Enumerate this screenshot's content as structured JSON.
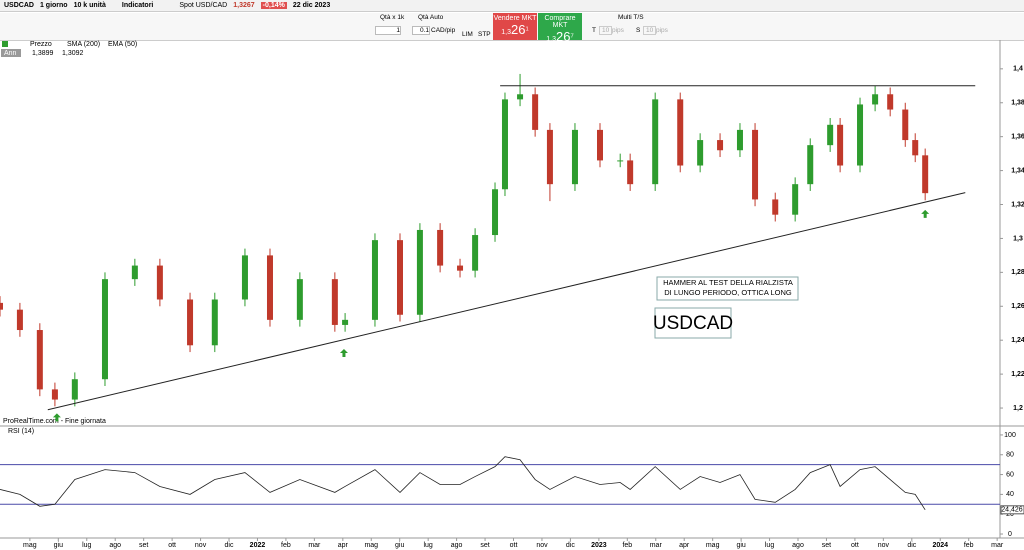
{
  "toolbar": {
    "symbol": "USDCAD",
    "timeframe": "1 giorno",
    "size": "10 k unità",
    "indicators": "Indicatori",
    "quote_name": "Spot USD/CAD",
    "quote_price": "1,3267",
    "quote_change": "-0,14%",
    "quote_date": "22 dic 2023"
  },
  "order_panel": {
    "qty_label": "Qtà x 1k",
    "qty_auto": "Qtà Auto",
    "qty": "1",
    "pip_value": "0.1",
    "pip_unit": "CAD/pip",
    "lim": "LIM",
    "stp": "STP",
    "sell_label": "Vendere MKT",
    "sell_small": "1,3",
    "sell_big": "26",
    "sell_sup": "1",
    "buy_label": "Comprare MKT",
    "buy_small": "1,3",
    "buy_big": "26",
    "buy_sup": "7",
    "multi": "Multi T/S",
    "t": "T",
    "t_pips": "10",
    "s": "S",
    "s_pips": "10",
    "pips": "pips"
  },
  "legend": {
    "price": "Prezzo",
    "sma": "SMA (200)",
    "ema": "EMA (50)",
    "ann": "Ann",
    "high": "1,3899",
    "low": "1,3092"
  },
  "chart_data": [
    {
      "type": "candlestick",
      "source": "ProRealTime.com - Fine giornata",
      "annotation": "HAMMER AL TEST DELLA RIALZISTA DI LUNGO PERIODO, OTTICA LONG",
      "label": "USDCAD",
      "up_color": "#2e9c2e",
      "down_color": "#c0392b",
      "x": [
        -1.05,
        -0.35,
        0.35,
        0.88,
        1.58,
        2.64,
        3.69,
        4.57,
        5.63,
        6.5,
        7.56,
        8.44,
        9.49,
        10.72,
        11.08,
        12.13,
        13.01,
        13.71,
        14.42,
        15.12,
        15.65,
        16.35,
        16.7,
        17.23,
        17.76,
        18.28,
        19.16,
        20.04,
        20.75,
        21.1,
        21.98,
        22.86,
        23.56,
        24.26,
        24.96,
        25.49,
        26.2,
        26.9,
        27.43,
        28.13,
        28.48,
        29.18,
        29.71,
        30.24,
        30.77,
        31.12,
        31.47
      ],
      "open": [
        1.262,
        1.258,
        1.246,
        1.211,
        1.205,
        1.217,
        1.276,
        1.284,
        1.264,
        1.237,
        1.264,
        1.29,
        1.252,
        1.276,
        1.249,
        1.252,
        1.299,
        1.255,
        1.305,
        1.284,
        1.281,
        1.302,
        1.329,
        1.382,
        1.385,
        1.364,
        1.332,
        1.364,
        1.346,
        1.346,
        1.332,
        1.382,
        1.343,
        1.358,
        1.352,
        1.364,
        1.323,
        1.314,
        1.332,
        1.355,
        1.367,
        1.343,
        1.379,
        1.385,
        1.376,
        1.358,
        1.349
      ],
      "high": [
        1.266,
        1.262,
        1.25,
        1.215,
        1.221,
        1.28,
        1.288,
        1.288,
        1.268,
        1.268,
        1.294,
        1.294,
        1.28,
        1.28,
        1.256,
        1.303,
        1.303,
        1.309,
        1.309,
        1.288,
        1.306,
        1.333,
        1.386,
        1.397,
        1.389,
        1.368,
        1.368,
        1.368,
        1.35,
        1.35,
        1.386,
        1.386,
        1.362,
        1.362,
        1.368,
        1.368,
        1.327,
        1.336,
        1.359,
        1.371,
        1.371,
        1.383,
        1.39,
        1.389,
        1.38,
        1.362,
        1.353
      ],
      "low": [
        1.254,
        1.242,
        1.207,
        1.201,
        1.201,
        1.213,
        1.272,
        1.26,
        1.233,
        1.233,
        1.26,
        1.248,
        1.248,
        1.245,
        1.245,
        1.248,
        1.251,
        1.251,
        1.28,
        1.277,
        1.277,
        1.298,
        1.325,
        1.378,
        1.36,
        1.322,
        1.328,
        1.342,
        1.342,
        1.328,
        1.328,
        1.339,
        1.339,
        1.348,
        1.348,
        1.319,
        1.31,
        1.31,
        1.328,
        1.351,
        1.339,
        1.339,
        1.375,
        1.372,
        1.354,
        1.345,
        1.3225
      ],
      "close": [
        1.258,
        1.246,
        1.211,
        1.205,
        1.217,
        1.276,
        1.284,
        1.264,
        1.237,
        1.264,
        1.29,
        1.252,
        1.276,
        1.249,
        1.252,
        1.299,
        1.255,
        1.305,
        1.284,
        1.281,
        1.302,
        1.329,
        1.382,
        1.385,
        1.364,
        1.332,
        1.364,
        1.346,
        1.346,
        1.332,
        1.382,
        1.343,
        1.358,
        1.352,
        1.364,
        1.323,
        1.314,
        1.332,
        1.355,
        1.367,
        1.343,
        1.379,
        1.385,
        1.376,
        1.358,
        1.349,
        1.3267
      ],
      "lines": [
        {
          "x": [
            16.53,
            33.23
          ],
          "y": [
            1.39,
            1.39
          ]
        },
        {
          "x": [
            0.63,
            32.88
          ],
          "y": [
            1.199,
            1.327
          ]
        }
      ],
      "markers": [
        {
          "x": 0.95,
          "y": 1.198
        },
        {
          "x": 11.04,
          "y": 1.236
        },
        {
          "x": 31.47,
          "y": 1.318
        }
      ],
      "xlim": [
        -1.05,
        34.1
      ],
      "ylim": [
        1.19,
        1.417
      ],
      "yticks": [
        {
          "value": 1.2,
          "label": "1,2"
        },
        {
          "value": 1.22,
          "label": "1,22"
        },
        {
          "value": 1.24,
          "label": "1,24"
        },
        {
          "value": 1.26,
          "label": "1,26"
        },
        {
          "value": 1.28,
          "label": "1,28"
        },
        {
          "value": 1.3,
          "label": "1,3"
        },
        {
          "value": 1.32,
          "label": "1,32"
        },
        {
          "value": 1.34,
          "label": "1,34"
        },
        {
          "value": 1.36,
          "label": "1,36"
        },
        {
          "value": 1.38,
          "label": "1,38"
        },
        {
          "value": 1.4,
          "label": "1,4"
        }
      ],
      "xticks": [
        {
          "value": 0,
          "label": "mag"
        },
        {
          "value": 1,
          "label": "giu"
        },
        {
          "value": 2,
          "label": "lug"
        },
        {
          "value": 3,
          "label": "ago"
        },
        {
          "value": 4,
          "label": "set"
        },
        {
          "value": 5,
          "label": "ott"
        },
        {
          "value": 6,
          "label": "nov"
        },
        {
          "value": 7,
          "label": "dic"
        },
        {
          "value": 8,
          "label": "2022"
        },
        {
          "value": 9,
          "label": "feb"
        },
        {
          "value": 10,
          "label": "mar"
        },
        {
          "value": 11,
          "label": "apr"
        },
        {
          "value": 12,
          "label": "mag"
        },
        {
          "value": 13,
          "label": "giu"
        },
        {
          "value": 14,
          "label": "lug"
        },
        {
          "value": 15,
          "label": "ago"
        },
        {
          "value": 16,
          "label": "set"
        },
        {
          "value": 17,
          "label": "ott"
        },
        {
          "value": 18,
          "label": "nov"
        },
        {
          "value": 19,
          "label": "dic"
        },
        {
          "value": 20,
          "label": "2023"
        },
        {
          "value": 21,
          "label": "feb"
        },
        {
          "value": 22,
          "label": "mar"
        },
        {
          "value": 23,
          "label": "apr"
        },
        {
          "value": 24,
          "label": "mag"
        },
        {
          "value": 25,
          "label": "giu"
        },
        {
          "value": 26,
          "label": "lug"
        },
        {
          "value": 27,
          "label": "ago"
        },
        {
          "value": 28,
          "label": "set"
        },
        {
          "value": 29,
          "label": "ott"
        },
        {
          "value": 30,
          "label": "nov"
        },
        {
          "value": 31,
          "label": "dic"
        },
        {
          "value": 32,
          "label": "2024"
        },
        {
          "value": 33,
          "label": "feb"
        },
        {
          "value": 34,
          "label": "mar"
        }
      ]
    },
    {
      "type": "line",
      "title": "RSI (14)",
      "color": "#222222",
      "level_color": "#4a4aa8",
      "values": [
        45,
        40,
        28,
        30,
        55,
        65,
        62,
        48,
        40,
        55,
        62,
        42,
        55,
        42,
        48,
        65,
        42,
        62,
        50,
        50,
        58,
        68,
        78,
        75,
        55,
        45,
        58,
        50,
        52,
        45,
        68,
        45,
        58,
        52,
        60,
        35,
        32,
        45,
        62,
        70,
        48,
        65,
        68,
        55,
        42,
        40,
        24.426
      ],
      "last_label": {
        "value": 24.426,
        "label": "24,426"
      },
      "levels": [
        30,
        70
      ],
      "ylim": [
        -3,
        108
      ],
      "yticks": [
        0,
        20,
        40,
        60,
        80,
        100
      ]
    }
  ]
}
